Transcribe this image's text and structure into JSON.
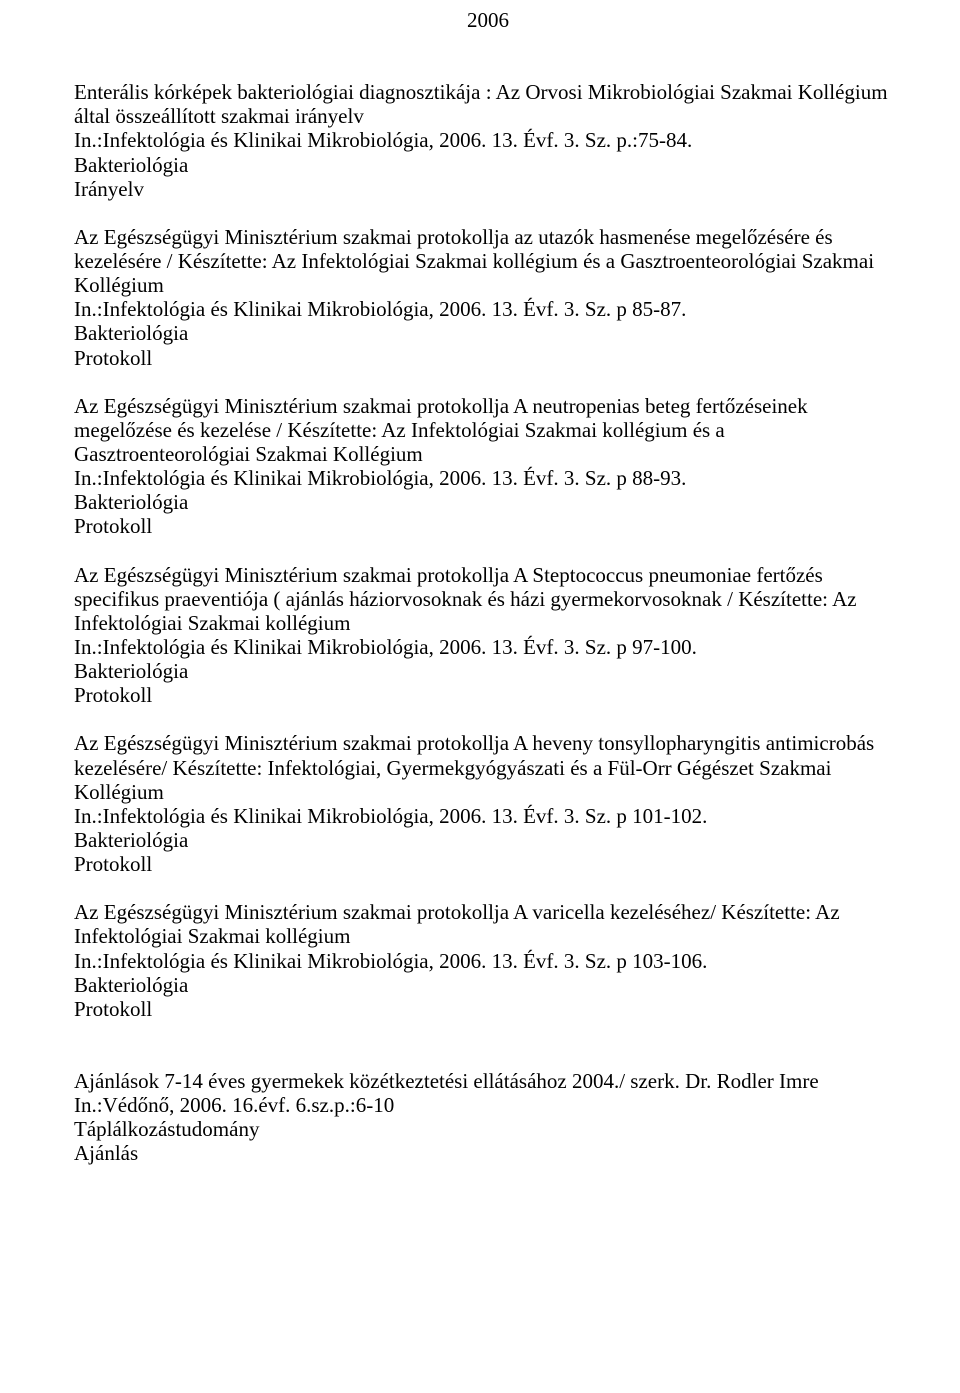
{
  "year": "2006",
  "entries": [
    {
      "title": "Enterális kórképek bakteriológiai diagnosztikája : Az Orvosi Mikrobiológiai Szakmai Kollégium által összeállított szakmai irányelv",
      "source": "In.:Infektológia és Klinikai Mikrobiológia, 2006. 13. Évf. 3. Sz. p.:75-84.",
      "tag1": "Bakteriológia",
      "tag2": "Irányelv"
    },
    {
      "title": "Az Egészségügyi Minisztérium szakmai protokollja az utazók hasmenése megelőzésére és kezelésére / Készítette: Az Infektológiai Szakmai kollégium és a Gasztroenteorológiai Szakmai Kollégium",
      "source": "In.:Infektológia és Klinikai Mikrobiológia, 2006. 13. Évf. 3. Sz. p 85-87.",
      "tag1": "Bakteriológia",
      "tag2": "Protokoll"
    },
    {
      "title": "Az Egészségügyi Minisztérium szakmai protokollja A neutropenias beteg fertőzéseinek megelőzése és kezelése / Készítette: Az Infektológiai Szakmai kollégium és a Gasztroenteorológiai Szakmai Kollégium",
      "source": "In.:Infektológia és Klinikai Mikrobiológia, 2006. 13. Évf. 3. Sz. p 88-93.",
      "tag1": "Bakteriológia",
      "tag2": "Protokoll"
    },
    {
      "title": "Az Egészségügyi Minisztérium szakmai protokollja A Steptococcus pneumoniae fertőzés specifikus praeventiója ( ajánlás háziorvosoknak és házi gyermekorvosoknak / Készítette: Az Infektológiai Szakmai kollégium",
      "source": "In.:Infektológia és Klinikai Mikrobiológia, 2006. 13. Évf. 3. Sz. p 97-100.",
      "tag1": "Bakteriológia",
      "tag2": "Protokoll"
    },
    {
      "title": "Az Egészségügyi Minisztérium szakmai protokollja A heveny tonsyllopharyngitis antimicrobás kezelésére/ Készítette: Infektológiai, Gyermekgyógyászati és a Fül-Orr Gégészet Szakmai Kollégium",
      "source": "In.:Infektológia és Klinikai Mikrobiológia, 2006. 13. Évf. 3. Sz. p 101-102.",
      "tag1": "Bakteriológia",
      "tag2": "Protokoll"
    },
    {
      "title": "Az Egészségügyi Minisztérium szakmai protokollja A varicella kezeléséhez/ Készítette: Az Infektológiai Szakmai kollégium",
      "source": "In.:Infektológia és Klinikai Mikrobiológia, 2006. 13. Évf. 3. Sz. p 103-106.",
      "tag1": "Bakteriológia",
      "tag2": "Protokoll"
    }
  ],
  "final": {
    "title": "Ajánlások 7-14 éves gyermekek közétkeztetési ellátásához 2004./ szerk. Dr. Rodler Imre",
    "source": "In.:Védőnő, 2006. 16.évf. 6.sz.p.:6-10",
    "tag1": "Táplálkozástudomány",
    "tag2": "Ajánlás"
  },
  "colors": {
    "text": "#000000",
    "background": "#ffffff"
  },
  "typography": {
    "font_family": "Times New Roman",
    "font_size_pt": 16
  }
}
